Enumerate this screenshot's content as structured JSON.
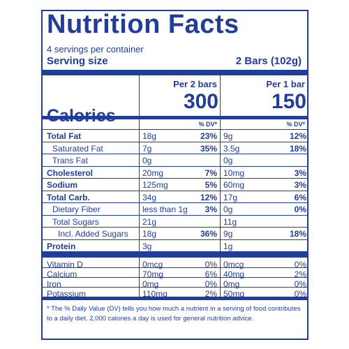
{
  "title": "Nutrition Facts",
  "servings_per_container": "4 servings per container",
  "serving_size_label": "Serving size",
  "serving_size_value": "2 Bars (102g)",
  "calories_label": "Calories",
  "columns": [
    {
      "header": "Per 2 bars",
      "calories": "300",
      "dv_header": "% DV*"
    },
    {
      "header": "Per 1 bar",
      "calories": "150",
      "dv_header": "% DV*"
    }
  ],
  "nutrients": [
    {
      "name": "Total Fat",
      "bold": true,
      "indent": 0,
      "c1_amt": "18g",
      "c1_dv": "23%",
      "c2_amt": "9g",
      "c2_dv": "12%"
    },
    {
      "name": "Saturated Fat",
      "bold": false,
      "indent": 1,
      "c1_amt": "7g",
      "c1_dv": "35%",
      "c2_amt": "3.5g",
      "c2_dv": "18%"
    },
    {
      "name": "Trans Fat",
      "bold": false,
      "indent": 1,
      "c1_amt": "0g",
      "c1_dv": "",
      "c2_amt": "0g",
      "c2_dv": ""
    },
    {
      "name": "Cholesterol",
      "bold": true,
      "indent": 0,
      "c1_amt": "20mg",
      "c1_dv": "7%",
      "c2_amt": "10mg",
      "c2_dv": "3%"
    },
    {
      "name": "Sodium",
      "bold": true,
      "indent": 0,
      "c1_amt": "125mg",
      "c1_dv": "5%",
      "c2_amt": "60mg",
      "c2_dv": "3%"
    },
    {
      "name": "Total Carb.",
      "bold": true,
      "indent": 0,
      "c1_amt": "34g",
      "c1_dv": "12%",
      "c2_amt": "17g",
      "c2_dv": "6%"
    },
    {
      "name": "Dietary Fiber",
      "bold": false,
      "indent": 1,
      "c1_amt": "less than 1g",
      "c1_dv": "3%",
      "c2_amt": "0g",
      "c2_dv": "0%"
    },
    {
      "name": "Total Sugars",
      "bold": false,
      "indent": 1,
      "c1_amt": "21g",
      "c1_dv": "",
      "c2_amt": "11g",
      "c2_dv": ""
    },
    {
      "name": "Incl. Added Sugars",
      "bold": false,
      "indent": 2,
      "c1_amt": "18g",
      "c1_dv": "36%",
      "c2_amt": "9g",
      "c2_dv": "18%"
    },
    {
      "name": "Protein",
      "bold": true,
      "indent": 0,
      "c1_amt": "3g",
      "c1_dv": "",
      "c2_amt": "1g",
      "c2_dv": ""
    }
  ],
  "vitamins": [
    {
      "name": "Vitamin D",
      "c1_amt": "0mcg",
      "c1_dv": "0%",
      "c2_amt": "0mcg",
      "c2_dv": "0%"
    },
    {
      "name": "Calcium",
      "c1_amt": "70mg",
      "c1_dv": "6%",
      "c2_amt": "40mg",
      "c2_dv": "2%"
    },
    {
      "name": "Iron",
      "c1_amt": "0mg",
      "c1_dv": "0%",
      "c2_amt": "0mg",
      "c2_dv": "0%"
    },
    {
      "name": "Potassium",
      "c1_amt": "110mg",
      "c1_dv": "2%",
      "c2_amt": "50mg",
      "c2_dv": "0%"
    }
  ],
  "footnote": "* The % Daily Value (DV) tells you how much a nutrient in a serving of food contributes to a daily diet. 2,000 calories a day is used for general nutrition advice.",
  "colors": {
    "ink": "#1f3d99",
    "background": "#ffffff"
  }
}
